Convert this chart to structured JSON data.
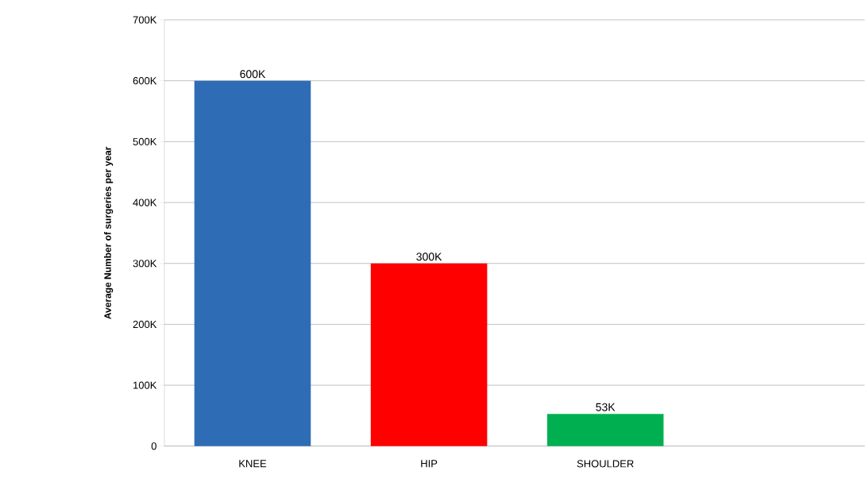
{
  "chart_data": {
    "type": "bar",
    "ylabel": "Average Number of surgeries per year",
    "categories": [
      "KNEE",
      "HIP",
      "SHOULDER",
      null
    ],
    "values": [
      600000,
      300000,
      53000,
      null
    ],
    "colors": [
      "#2e6db5",
      "#ff0000",
      "#00b050",
      "#000000"
    ],
    "value_labels": [
      "600K",
      "300K",
      "53K",
      null
    ],
    "ylim": [
      0,
      700000
    ],
    "yticks": [
      0,
      {
        "value": 100000,
        "label": "100K"
      },
      {
        "value": 200000,
        "label": "200K"
      },
      {
        "value": 300000,
        "label": "300K"
      },
      {
        "value": 400000,
        "label": "400K"
      },
      {
        "value": 500000,
        "label": "500K"
      },
      {
        "value": 600000,
        "label": "600K"
      },
      {
        "value": 700000,
        "label": "700K"
      }
    ],
    "grid": "y"
  }
}
